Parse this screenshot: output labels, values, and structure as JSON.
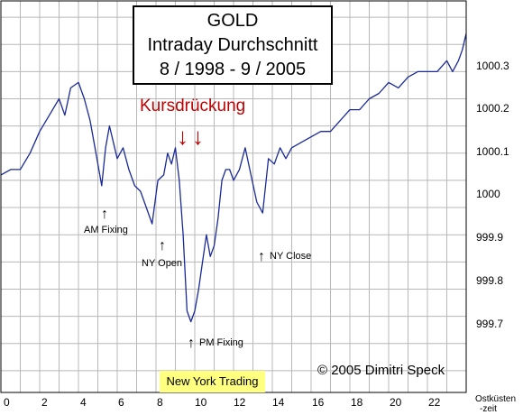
{
  "chart_data": {
    "type": "line",
    "title": [
      "GOLD",
      "Intraday Durchschnitt",
      "8 / 1998 - 9 / 2005"
    ],
    "xlabel": [
      "Ostküsten",
      "-zeit"
    ],
    "x_ticks": [
      "0",
      "2",
      "4",
      "6",
      "8",
      "10",
      "12",
      "14",
      "16",
      "18",
      "20",
      "22"
    ],
    "y_ticks": [
      "1000.3",
      "1000.2",
      "1000.1",
      "1000",
      "999.9",
      "999.8",
      "999.7"
    ],
    "xlim": [
      0,
      24
    ],
    "ylim": [
      999.61,
      1000.33
    ],
    "grid": true,
    "series": [
      {
        "color": "#1a2a9a",
        "x": [
          0,
          0.5,
          1,
          1.5,
          2,
          2.5,
          3,
          3.3,
          3.6,
          4,
          4.3,
          4.6,
          4.9,
          5.2,
          5.4,
          5.6,
          5.8,
          6,
          6.3,
          6.6,
          6.9,
          7.2,
          7.5,
          7.8,
          8.1,
          8.4,
          8.6,
          8.8,
          9,
          9.2,
          9.4,
          9.6,
          9.8,
          10,
          10.2,
          10.4,
          10.6,
          10.8,
          11,
          11.2,
          11.4,
          11.6,
          11.8,
          12,
          12.3,
          12.6,
          12.9,
          13.2,
          13.5,
          13.8,
          14.1,
          14.4,
          14.7,
          15,
          15.5,
          16,
          16.5,
          17,
          17.5,
          18,
          18.5,
          19,
          19.5,
          20,
          20.5,
          21,
          21.5,
          22,
          22.5,
          23,
          23.3,
          23.6,
          23.8,
          24
        ],
        "y": [
          1000.01,
          1000.02,
          1000.02,
          1000.05,
          1000.09,
          1000.12,
          1000.15,
          1000.12,
          1000.17,
          1000.18,
          1000.15,
          1000.11,
          1000.05,
          999.99,
          1000.06,
          1000.1,
          1000.07,
          1000.04,
          1000.06,
          1000.02,
          999.99,
          999.98,
          999.95,
          999.92,
          1000.0,
          1000.01,
          1000.05,
          1000.03,
          1000.06,
          1000.0,
          999.9,
          999.76,
          999.74,
          999.76,
          999.8,
          999.85,
          999.9,
          999.86,
          999.88,
          999.93,
          1000.0,
          1000.02,
          1000.02,
          1000.0,
          1000.02,
          1000.06,
          1000.01,
          999.96,
          999.94,
          1000.04,
          1000.03,
          1000.06,
          1000.04,
          1000.06,
          1000.07,
          1000.08,
          1000.09,
          1000.09,
          1000.11,
          1000.13,
          1000.13,
          1000.15,
          1000.16,
          1000.18,
          1000.17,
          1000.19,
          1000.2,
          1000.2,
          1000.2,
          1000.22,
          1000.2,
          1000.22,
          1000.24,
          1000.27
        ]
      }
    ],
    "annotations": {
      "kursdrueckung": "Kursdrückung",
      "red_arrows": "↓↓",
      "am_fixing": "AM Fixing",
      "ny_open": "NY Open",
      "pm_fixing": "PM Fixing",
      "ny_close": "NY Close",
      "new_york_trading": "New York Trading",
      "copyright": "© 2005 Dimitri Speck",
      "up_arrow": "↑"
    }
  }
}
